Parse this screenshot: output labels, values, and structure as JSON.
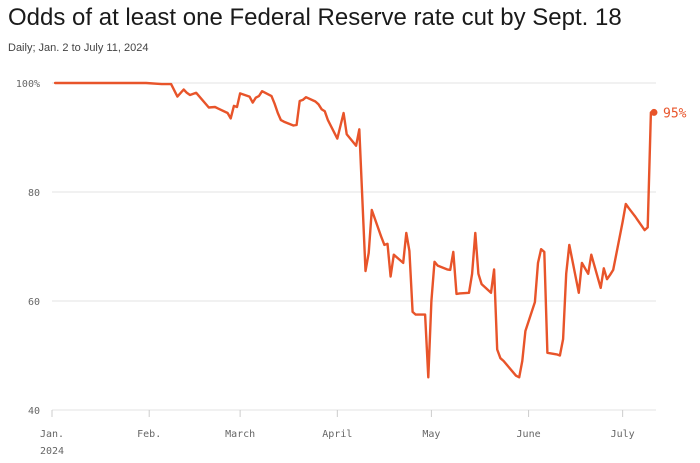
{
  "title": "Odds of at least one Federal Reserve rate cut by Sept. 18",
  "subtitle": "Daily; Jan. 2 to July 11, 2024",
  "colors": {
    "line": "#e8542a",
    "grid": "#e3e3e3",
    "axis": "#cccccc",
    "text": "#666666"
  },
  "chart_data": {
    "type": "line",
    "title": "Odds of at least one Federal Reserve rate cut by Sept. 18",
    "subtitle": "Daily; Jan. 2 to July 11, 2024",
    "xlabel": "",
    "ylabel": "",
    "ylim": [
      40,
      100
    ],
    "yticks": [
      40,
      60,
      80,
      100
    ],
    "ytick_labels": [
      "40",
      "60",
      "80",
      "100%"
    ],
    "xlim": [
      "2024-01-01",
      "2024-07-11"
    ],
    "xticks": [
      "2024-01-01",
      "2024-02-01",
      "2024-03-01",
      "2024-04-01",
      "2024-05-01",
      "2024-06-01",
      "2024-07-01"
    ],
    "xtick_labels": [
      "Jan.",
      "Feb.",
      "March",
      "April",
      "May",
      "June",
      "July"
    ],
    "xtick_sublabels": [
      "2024",
      "",
      "",
      "",
      "",
      "",
      ""
    ],
    "grid": "horizontal",
    "end_label": "95%",
    "series": [
      {
        "x": [
          "2024-01-02",
          "2024-01-16",
          "2024-01-31",
          "2024-02-05",
          "2024-02-08",
          "2024-02-10",
          "2024-02-12",
          "2024-02-13",
          "2024-02-14",
          "2024-02-16",
          "2024-02-20",
          "2024-02-22",
          "2024-02-23",
          "2024-02-26",
          "2024-02-27",
          "2024-02-28",
          "2024-02-29",
          "2024-03-01",
          "2024-03-04",
          "2024-03-05",
          "2024-03-06",
          "2024-03-07",
          "2024-03-08",
          "2024-03-11",
          "2024-03-12",
          "2024-03-13",
          "2024-03-14",
          "2024-03-15",
          "2024-03-18",
          "2024-03-19",
          "2024-03-20",
          "2024-03-21",
          "2024-03-22",
          "2024-03-25",
          "2024-03-26",
          "2024-03-27",
          "2024-03-28",
          "2024-03-29",
          "2024-04-01",
          "2024-04-03",
          "2024-04-04",
          "2024-04-07",
          "2024-04-08",
          "2024-04-10",
          "2024-04-11",
          "2024-04-12",
          "2024-04-15",
          "2024-04-16",
          "2024-04-17",
          "2024-04-18",
          "2024-04-19",
          "2024-04-22",
          "2024-04-23",
          "2024-04-24",
          "2024-04-25",
          "2024-04-26",
          "2024-04-29",
          "2024-04-30",
          "2024-05-01",
          "2024-05-02",
          "2024-05-03",
          "2024-05-06",
          "2024-05-07",
          "2024-05-08",
          "2024-05-09",
          "2024-05-10",
          "2024-05-13",
          "2024-05-14",
          "2024-05-15",
          "2024-05-16",
          "2024-05-17",
          "2024-05-20",
          "2024-05-21",
          "2024-05-22",
          "2024-05-23",
          "2024-05-24",
          "2024-05-28",
          "2024-05-29",
          "2024-05-30",
          "2024-05-31",
          "2024-06-03",
          "2024-06-04",
          "2024-06-05",
          "2024-06-06",
          "2024-06-07",
          "2024-06-10",
          "2024-06-11",
          "2024-06-12",
          "2024-06-13",
          "2024-06-14",
          "2024-06-17",
          "2024-06-18",
          "2024-06-20",
          "2024-06-21",
          "2024-06-24",
          "2024-06-25",
          "2024-06-26",
          "2024-06-27",
          "2024-06-28",
          "2024-07-01",
          "2024-07-02",
          "2024-07-03",
          "2024-07-05",
          "2024-07-08",
          "2024-07-09",
          "2024-07-10",
          "2024-07-11"
        ],
        "y": [
          100,
          100,
          100,
          99.8,
          99.8,
          97.5,
          98.8,
          98.2,
          97.8,
          98.2,
          95.5,
          95.6,
          95.3,
          94.5,
          93.5,
          95.8,
          95.6,
          98.1,
          97.5,
          96.4,
          97.3,
          97.6,
          98.5,
          97.6,
          96.2,
          94.5,
          93.2,
          92.9,
          92.2,
          92.3,
          96.7,
          96.9,
          97.4,
          96.6,
          96.1,
          95.2,
          94.8,
          93.2,
          89.8,
          94.5,
          90.6,
          88.5,
          91.5,
          65.5,
          68.8,
          76.7,
          71.8,
          70.3,
          70.5,
          64.5,
          68.5,
          67.0,
          72.5,
          69.2,
          58.0,
          57.5,
          57.5,
          46.0,
          60.0,
          67.2,
          66.5,
          65.8,
          65.7,
          69.0,
          61.3,
          61.4,
          61.5,
          65.0,
          72.5,
          65.0,
          63.1,
          61.5,
          65.8,
          51.1,
          49.5,
          49.0,
          46.3,
          46.0,
          49.0,
          54.5,
          59.8,
          67.0,
          69.5,
          69.0,
          50.5,
          50.2,
          50.0,
          53.0,
          65.0,
          70.3,
          61.5,
          67.0,
          65.0,
          68.5,
          62.4,
          66.0,
          64.0,
          64.8,
          65.7,
          74.5,
          77.8,
          77.0,
          75.5,
          73.0,
          73.5,
          94.6,
          94.6
        ]
      }
    ]
  }
}
